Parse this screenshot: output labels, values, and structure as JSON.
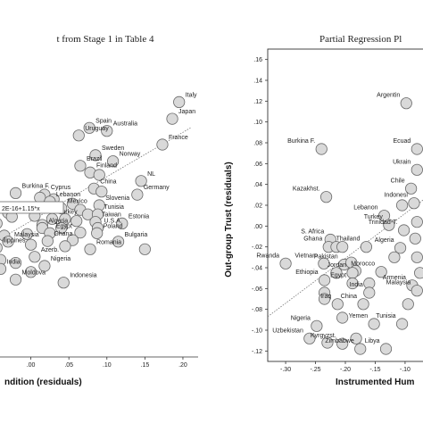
{
  "chart_data": [
    {
      "type": "scatter",
      "title": "t from Stage 1 in Table 4",
      "xlabel": "ndition (residuals)",
      "ylabel": "",
      "xlim": [
        -0.05,
        0.22
      ],
      "ylim": [
        0,
        1
      ],
      "x_ticks": [
        ".00",
        ".05",
        ".10",
        ".15",
        ".20"
      ],
      "fit_equation": "2E-16+1.15*x",
      "points": [
        {
          "label": "Italy",
          "x": 0.195,
          "y": 0.84
        },
        {
          "label": "Japan",
          "x": 0.186,
          "y": 0.785
        },
        {
          "label": "Spain",
          "x": 0.077,
          "y": 0.755
        },
        {
          "label": "Australia",
          "x": 0.1,
          "y": 0.745
        },
        {
          "label": "Uruguay",
          "x": 0.063,
          "y": 0.73
        },
        {
          "label": "France",
          "x": 0.173,
          "y": 0.7
        },
        {
          "label": "Sweden",
          "x": 0.085,
          "y": 0.665
        },
        {
          "label": "Norway",
          "x": 0.108,
          "y": 0.645
        },
        {
          "label": "Brazil",
          "x": 0.065,
          "y": 0.63
        },
        {
          "label": "Finland",
          "x": 0.078,
          "y": 0.608
        },
        {
          "label": "",
          "x": 0.09,
          "y": 0.6
        },
        {
          "label": "NL",
          "x": 0.145,
          "y": 0.58
        },
        {
          "label": "China",
          "x": 0.083,
          "y": 0.555
        },
        {
          "label": "",
          "x": 0.093,
          "y": 0.545
        },
        {
          "label": "Burkina F.",
          "x": -0.02,
          "y": 0.54
        },
        {
          "label": "Cyprus",
          "x": 0.018,
          "y": 0.535
        },
        {
          "label": "Germany",
          "x": 0.14,
          "y": 0.535
        },
        {
          "label": "",
          "x": 0.012,
          "y": 0.525
        },
        {
          "label": "",
          "x": 0.03,
          "y": 0.52
        },
        {
          "label": "Lebanon",
          "x": 0.025,
          "y": 0.512
        },
        {
          "label": "",
          "x": 0.055,
          "y": 0.505
        },
        {
          "label": "Slovenia",
          "x": 0.09,
          "y": 0.5
        },
        {
          "label": "Mexico",
          "x": 0.04,
          "y": 0.49
        },
        {
          "label": "",
          "x": 0.065,
          "y": 0.485
        },
        {
          "label": "",
          "x": -0.048,
          "y": 0.48
        },
        {
          "label": "",
          "x": -0.03,
          "y": 0.475
        },
        {
          "label": "",
          "x": 0.075,
          "y": 0.47
        },
        {
          "label": "Tunisia",
          "x": 0.088,
          "y": 0.47
        },
        {
          "label": "Colombia",
          "x": -0.025,
          "y": 0.462
        },
        {
          "label": "",
          "x": 0.005,
          "y": 0.465
        },
        {
          "label": "Turkey",
          "x": 0.028,
          "y": 0.455
        },
        {
          "label": "",
          "x": 0.045,
          "y": 0.455
        },
        {
          "label": "",
          "x": 0.06,
          "y": 0.448
        },
        {
          "label": "Taiwan",
          "x": 0.085,
          "y": 0.445
        },
        {
          "label": "Estonia",
          "x": 0.12,
          "y": 0.44
        },
        {
          "label": "",
          "x": -0.045,
          "y": 0.44
        },
        {
          "label": "",
          "x": 0.015,
          "y": 0.435
        },
        {
          "label": "Algeria",
          "x": 0.015,
          "y": 0.425
        },
        {
          "label": "U.S.A.",
          "x": 0.088,
          "y": 0.425
        },
        {
          "label": "",
          "x": 0.04,
          "y": 0.425
        },
        {
          "label": "Egypt",
          "x": 0.025,
          "y": 0.408
        },
        {
          "label": "Poland",
          "x": 0.087,
          "y": 0.408
        },
        {
          "label": "",
          "x": 0.065,
          "y": 0.41
        },
        {
          "label": "",
          "x": -0.035,
          "y": 0.4
        },
        {
          "label": "",
          "x": -0.005,
          "y": 0.405
        },
        {
          "label": "Malaysia",
          "x": -0.03,
          "y": 0.38
        },
        {
          "label": "Ghana",
          "x": 0.022,
          "y": 0.382
        },
        {
          "label": "Bulgaria",
          "x": 0.115,
          "y": 0.38
        },
        {
          "label": "",
          "x": 0.055,
          "y": 0.385
        },
        {
          "label": "",
          "x": 0.0,
          "y": 0.37
        },
        {
          "label": "ilippines",
          "x": -0.045,
          "y": 0.36
        },
        {
          "label": "Romania",
          "x": 0.078,
          "y": 0.355
        },
        {
          "label": "",
          "x": 0.045,
          "y": 0.365
        },
        {
          "label": "",
          "x": 0.15,
          "y": 0.355
        },
        {
          "label": "Azerb.",
          "x": 0.005,
          "y": 0.33
        },
        {
          "label": "",
          "x": -0.04,
          "y": 0.32
        },
        {
          "label": "",
          "x": -0.02,
          "y": 0.31
        },
        {
          "label": "Nigeria",
          "x": 0.018,
          "y": 0.3
        },
        {
          "label": "India",
          "x": -0.04,
          "y": 0.29
        },
        {
          "label": "",
          "x": 0.0,
          "y": 0.28
        },
        {
          "label": "Moldova",
          "x": -0.02,
          "y": 0.255
        },
        {
          "label": "Indonesia",
          "x": 0.043,
          "y": 0.245
        }
      ]
    },
    {
      "type": "scatter",
      "title": "Partial Regression Pl",
      "xlabel": "Instrumented Hum",
      "ylabel": "Out-group Trust (residuals)",
      "xlim": [
        -0.33,
        -0.07
      ],
      "ylim": [
        -0.13,
        0.17
      ],
      "x_ticks": [
        "-.30",
        "-.25",
        "-.20",
        "-.15",
        "-.10",
        "-.05"
      ],
      "y_ticks": [
        ".16",
        ".14",
        ".12",
        ".10",
        ".08",
        ".06",
        ".04",
        ".02",
        ".00",
        "-.02",
        "-.04",
        "-.06",
        "-.08",
        "-.10",
        "-.12"
      ],
      "points": [
        {
          "label": "Argentin",
          "x": -0.098,
          "y": 0.118
        },
        {
          "label": "Burkina F.",
          "x": -0.24,
          "y": 0.074
        },
        {
          "label": "Ecuad",
          "x": -0.08,
          "y": 0.074
        },
        {
          "label": "Ukrain",
          "x": -0.08,
          "y": 0.054
        },
        {
          "label": "Kazakhst.",
          "x": -0.232,
          "y": 0.028
        },
        {
          "label": "Chile",
          "x": -0.09,
          "y": 0.036
        },
        {
          "label": "Indonesi",
          "x": -0.085,
          "y": 0.022
        },
        {
          "label": "Lebanon",
          "x": -0.135,
          "y": 0.01
        },
        {
          "label": "",
          "x": -0.105,
          "y": 0.02
        },
        {
          "label": "Turkey",
          "x": -0.127,
          "y": 0.001
        },
        {
          "label": "Trinidad-T.",
          "x": -0.102,
          "y": -0.004
        },
        {
          "label": "",
          "x": -0.08,
          "y": 0.004
        },
        {
          "label": "",
          "x": -0.083,
          "y": -0.012
        },
        {
          "label": "S. Africa",
          "x": -0.225,
          "y": -0.013
        },
        {
          "label": "Ghana",
          "x": -0.228,
          "y": -0.02
        },
        {
          "label": "",
          "x": -0.215,
          "y": -0.02
        },
        {
          "label": "",
          "x": -0.205,
          "y": -0.02
        },
        {
          "label": "Thailand",
          "x": -0.165,
          "y": -0.02
        },
        {
          "label": "Algeria",
          "x": -0.108,
          "y": -0.021
        },
        {
          "label": "",
          "x": -0.118,
          "y": -0.03
        },
        {
          "label": "",
          "x": -0.08,
          "y": -0.03
        },
        {
          "label": "Rwanda",
          "x": -0.3,
          "y": -0.036
        },
        {
          "label": "Vietnam",
          "x": -0.236,
          "y": -0.036
        },
        {
          "label": "Pakistan",
          "x": -0.202,
          "y": -0.037
        },
        {
          "label": "",
          "x": -0.19,
          "y": -0.035
        },
        {
          "label": "",
          "x": -0.183,
          "y": -0.043
        },
        {
          "label": "Jordan",
          "x": -0.188,
          "y": -0.045
        },
        {
          "label": "Morocco",
          "x": -0.14,
          "y": -0.044
        },
        {
          "label": "Ethiopia",
          "x": -0.235,
          "y": -0.052
        },
        {
          "label": "",
          "x": -0.215,
          "y": -0.045
        },
        {
          "label": "Egypt",
          "x": -0.188,
          "y": -0.055
        },
        {
          "label": "",
          "x": -0.16,
          "y": -0.055
        },
        {
          "label": "Armenia",
          "x": -0.088,
          "y": -0.057
        },
        {
          "label": "",
          "x": -0.075,
          "y": -0.045
        },
        {
          "label": "Malaysia",
          "x": -0.08,
          "y": -0.062
        },
        {
          "label": "India",
          "x": -0.16,
          "y": -0.064
        },
        {
          "label": "",
          "x": -0.235,
          "y": -0.064
        },
        {
          "label": "",
          "x": -0.235,
          "y": -0.07
        },
        {
          "label": "Iraq",
          "x": -0.213,
          "y": -0.075
        },
        {
          "label": "China",
          "x": -0.17,
          "y": -0.075
        },
        {
          "label": "",
          "x": -0.095,
          "y": -0.075
        },
        {
          "label": "Nigeria",
          "x": -0.248,
          "y": -0.096
        },
        {
          "label": "",
          "x": -0.205,
          "y": -0.088
        },
        {
          "label": "Yemen",
          "x": -0.152,
          "y": -0.094
        },
        {
          "label": "Tunisia",
          "x": -0.105,
          "y": -0.094
        },
        {
          "label": "Uzbekistan",
          "x": -0.26,
          "y": -0.108
        },
        {
          "label": "",
          "x": -0.23,
          "y": -0.112
        },
        {
          "label": "Kyrgyzst.",
          "x": -0.205,
          "y": -0.113
        },
        {
          "label": "",
          "x": -0.182,
          "y": -0.108
        },
        {
          "label": "Zimbabwe",
          "x": -0.175,
          "y": -0.118
        },
        {
          "label": "Libya",
          "x": -0.132,
          "y": -0.118
        }
      ]
    }
  ]
}
